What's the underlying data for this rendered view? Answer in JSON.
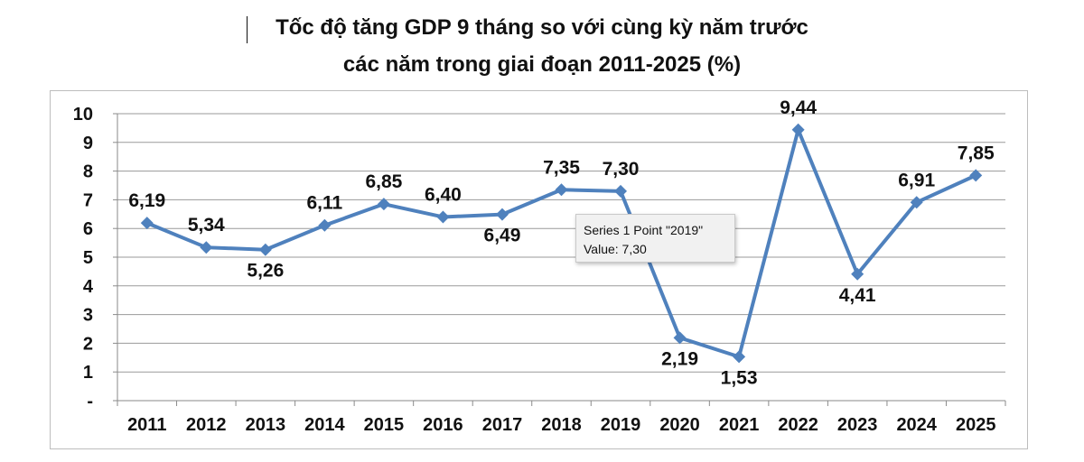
{
  "chart_data": {
    "type": "line",
    "title_line1": "Tốc độ tăng GDP 9 tháng so với cùng kỳ năm trước",
    "title_line2": "các năm trong giai đoạn 2011-2025 (%)",
    "categories": [
      "2011",
      "2012",
      "2013",
      "2014",
      "2015",
      "2016",
      "2017",
      "2018",
      "2019",
      "2020",
      "2021",
      "2022",
      "2023",
      "2024",
      "2025"
    ],
    "values": [
      6.19,
      5.34,
      5.26,
      6.11,
      6.85,
      6.4,
      6.49,
      7.35,
      7.3,
      2.19,
      1.53,
      9.44,
      4.41,
      6.91,
      7.85
    ],
    "data_labels": [
      "6,19",
      "5,34",
      "5,26",
      "6,11",
      "6,85",
      "6,40",
      "6,49",
      "7,35",
      "7,30",
      "2,19",
      "1,53",
      "9,44",
      "4,41",
      "6,91",
      "7,85"
    ],
    "label_position": [
      "above",
      "above",
      "below",
      "above",
      "above",
      "above",
      "below",
      "above",
      "above",
      "below",
      "below",
      "above",
      "below",
      "above",
      "above"
    ],
    "y_ticks": [
      "-",
      "1",
      "2",
      "3",
      "4",
      "5",
      "6",
      "7",
      "8",
      "9",
      "10"
    ],
    "ylim": [
      0,
      10
    ],
    "grid": true,
    "series_color": "#4f81bd",
    "marker": "diamond"
  },
  "tooltip": {
    "line1": "Series 1 Point \"2019\"",
    "line2": "Value:  7,30"
  }
}
